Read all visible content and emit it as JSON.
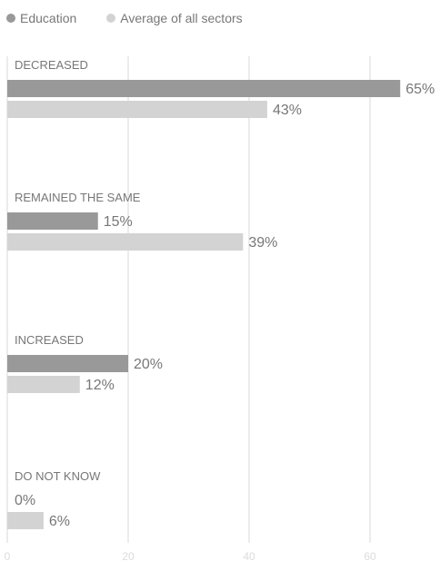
{
  "chart_data": {
    "type": "bar",
    "orientation": "horizontal",
    "categories": [
      "DECREASED",
      "REMAINED THE SAME",
      "INCREASED",
      "DO NOT KNOW"
    ],
    "series": [
      {
        "name": "Education",
        "values": [
          65,
          15,
          20,
          0
        ],
        "labels": [
          "65%",
          "15%",
          "20%",
          "0%"
        ],
        "color": "#999999"
      },
      {
        "name": "Average of all sectors",
        "values": [
          43,
          39,
          12,
          6
        ],
        "labels": [
          "43%",
          "39%",
          "12%",
          "6%"
        ],
        "color": "#d3d3d3"
      }
    ],
    "xlim": [
      0,
      65
    ],
    "xticks": [
      "0",
      "20",
      "40",
      "60"
    ],
    "xtick_values": [
      0,
      20,
      40,
      60
    ],
    "grid": true,
    "legend_position": "top-left"
  }
}
